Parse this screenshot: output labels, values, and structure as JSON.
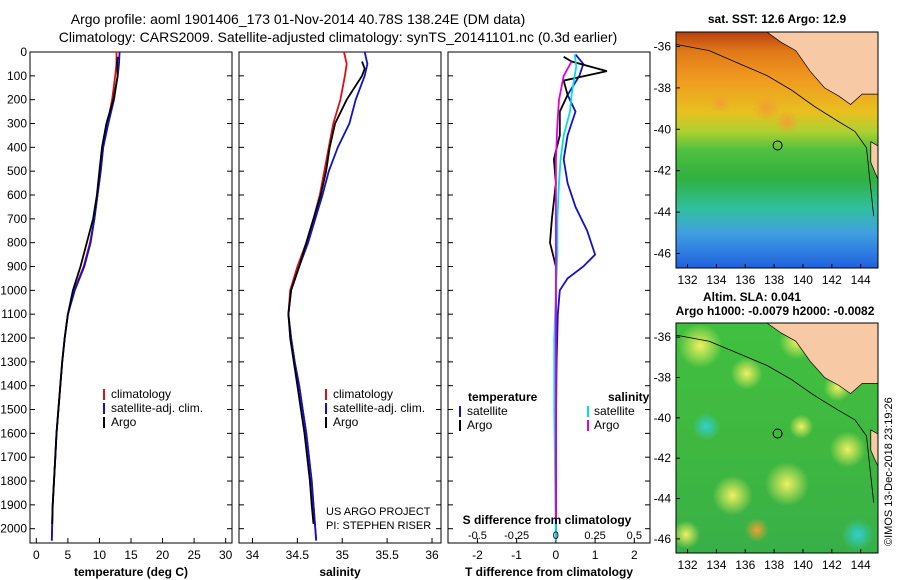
{
  "header": {
    "line1": "Argo profile: aoml 1901406_173 01-Nov-2014 40.78S 138.24E (DM data)",
    "line2": "Climatology: CARS2009. Satellite-adjusted climatology: synTS_20141101.nc (0.3d earlier)"
  },
  "colors": {
    "climatology": "#e01010",
    "satellite": "#1010d0",
    "argo": "#000000",
    "sal_satellite": "#00e0e0",
    "sal_argo": "#e000e0",
    "land": "#f7c9a4"
  },
  "chart_data": [
    {
      "type": "line",
      "panel": "temperature",
      "xlabel": "temperature (deg C)",
      "ylabel": "",
      "xlim": [
        -1,
        31
      ],
      "ylim": [
        2060,
        0
      ],
      "xticks": [
        0,
        5,
        10,
        15,
        20,
        25,
        30
      ],
      "yticks": [
        0,
        100,
        200,
        300,
        400,
        500,
        600,
        700,
        800,
        900,
        1000,
        1100,
        1200,
        1300,
        1400,
        1500,
        1600,
        1700,
        1800,
        1900,
        2000
      ],
      "ytick_labels": [
        "0",
        "100",
        "200",
        "300",
        "400",
        "500",
        "600",
        "700",
        "800",
        "900",
        "1000",
        "1100",
        "1200",
        "1300",
        "1400",
        "1500",
        "1600",
        "1700",
        "1800",
        "1900",
        "2000"
      ],
      "legend": [
        "climatology",
        "satellite-adj. clim.",
        "Argo"
      ],
      "series": [
        {
          "name": "climatology",
          "color": "#e01010",
          "points": [
            [
              12.7,
              0
            ],
            [
              12.7,
              50
            ],
            [
              12.5,
              100
            ],
            [
              12.0,
              200
            ],
            [
              11.3,
              300
            ],
            [
              10.6,
              400
            ],
            [
              10.2,
              500
            ],
            [
              9.7,
              600
            ],
            [
              9.2,
              700
            ],
            [
              8.5,
              800
            ],
            [
              7.5,
              900
            ],
            [
              6.0,
              1000
            ],
            [
              5.0,
              1100
            ],
            [
              4.5,
              1200
            ],
            [
              4.1,
              1300
            ],
            [
              3.8,
              1400
            ],
            [
              3.5,
              1500
            ],
            [
              3.2,
              1600
            ],
            [
              3.0,
              1700
            ],
            [
              2.8,
              1800
            ],
            [
              2.6,
              1900
            ],
            [
              2.5,
              2000
            ],
            [
              2.45,
              2050
            ]
          ]
        },
        {
          "name": "satellite-adj. clim.",
          "color": "#1010d0",
          "points": [
            [
              13.2,
              0
            ],
            [
              13.1,
              50
            ],
            [
              12.9,
              100
            ],
            [
              12.3,
              200
            ],
            [
              11.4,
              300
            ],
            [
              10.6,
              400
            ],
            [
              10.2,
              500
            ],
            [
              9.7,
              600
            ],
            [
              9.2,
              700
            ],
            [
              8.6,
              800
            ],
            [
              7.6,
              900
            ],
            [
              6.1,
              1000
            ],
            [
              5.0,
              1100
            ],
            [
              4.5,
              1200
            ],
            [
              4.1,
              1300
            ],
            [
              3.8,
              1400
            ],
            [
              3.5,
              1500
            ],
            [
              3.2,
              1600
            ],
            [
              3.0,
              1700
            ],
            [
              2.8,
              1800
            ],
            [
              2.6,
              1900
            ],
            [
              2.5,
              2000
            ],
            [
              2.45,
              2050
            ]
          ]
        },
        {
          "name": "Argo",
          "color": "#000000",
          "points": [
            [
              12.9,
              20
            ],
            [
              12.8,
              50
            ],
            [
              12.9,
              100
            ],
            [
              12.2,
              200
            ],
            [
              11.1,
              300
            ],
            [
              10.4,
              400
            ],
            [
              10.0,
              500
            ],
            [
              9.6,
              600
            ],
            [
              9.0,
              700
            ],
            [
              8.0,
              800
            ],
            [
              7.0,
              900
            ],
            [
              5.8,
              1000
            ],
            [
              5.0,
              1100
            ],
            [
              4.5,
              1200
            ],
            [
              4.1,
              1300
            ],
            [
              3.8,
              1400
            ],
            [
              3.5,
              1500
            ],
            [
              3.2,
              1600
            ],
            [
              3.0,
              1700
            ],
            [
              2.8,
              1800
            ],
            [
              2.6,
              1900
            ],
            [
              2.5,
              1980
            ]
          ]
        }
      ]
    },
    {
      "type": "line",
      "panel": "salinity",
      "xlabel": "salinity",
      "ylabel": "",
      "xlim": [
        33.85,
        36.1
      ],
      "ylim": [
        2060,
        0
      ],
      "xticks": [
        34,
        34.5,
        35,
        35.5,
        36
      ],
      "xtick_labels": [
        "34",
        "34.5",
        "35",
        "35.5",
        "36"
      ],
      "legend": [
        "climatology",
        "satellite-adj. clim.",
        "Argo"
      ],
      "annotations": [
        "US ARGO PROJECT",
        "PI: STEPHEN RISER"
      ],
      "series": [
        {
          "name": "climatology",
          "color": "#e01010",
          "points": [
            [
              35.02,
              0
            ],
            [
              35.05,
              50
            ],
            [
              35.03,
              100
            ],
            [
              34.98,
              200
            ],
            [
              34.9,
              300
            ],
            [
              34.85,
              400
            ],
            [
              34.8,
              500
            ],
            [
              34.75,
              600
            ],
            [
              34.68,
              700
            ],
            [
              34.6,
              800
            ],
            [
              34.5,
              900
            ],
            [
              34.42,
              1000
            ],
            [
              34.4,
              1100
            ],
            [
              34.43,
              1200
            ],
            [
              34.47,
              1300
            ],
            [
              34.52,
              1400
            ],
            [
              34.56,
              1500
            ],
            [
              34.6,
              1600
            ],
            [
              34.63,
              1700
            ],
            [
              34.66,
              1800
            ],
            [
              34.68,
              1900
            ],
            [
              34.7,
              2000
            ],
            [
              34.71,
              2050
            ]
          ]
        },
        {
          "name": "satellite-adj. clim.",
          "color": "#1010d0",
          "points": [
            [
              35.25,
              0
            ],
            [
              35.28,
              50
            ],
            [
              35.25,
              100
            ],
            [
              35.15,
              200
            ],
            [
              35.08,
              300
            ],
            [
              34.95,
              400
            ],
            [
              34.85,
              500
            ],
            [
              34.78,
              600
            ],
            [
              34.7,
              700
            ],
            [
              34.62,
              800
            ],
            [
              34.52,
              900
            ],
            [
              34.43,
              1000
            ],
            [
              34.4,
              1100
            ],
            [
              34.43,
              1200
            ],
            [
              34.47,
              1300
            ],
            [
              34.52,
              1400
            ],
            [
              34.56,
              1500
            ],
            [
              34.6,
              1600
            ],
            [
              34.63,
              1700
            ],
            [
              34.66,
              1800
            ],
            [
              34.68,
              1900
            ],
            [
              34.7,
              2000
            ],
            [
              34.71,
              2050
            ]
          ]
        },
        {
          "name": "Argo",
          "color": "#000000",
          "points": [
            [
              35.22,
              40
            ],
            [
              35.25,
              70
            ],
            [
              35.22,
              100
            ],
            [
              35.05,
              200
            ],
            [
              34.92,
              300
            ],
            [
              34.86,
              400
            ],
            [
              34.82,
              500
            ],
            [
              34.76,
              600
            ],
            [
              34.68,
              700
            ],
            [
              34.6,
              800
            ],
            [
              34.52,
              900
            ],
            [
              34.43,
              1000
            ],
            [
              34.4,
              1100
            ],
            [
              34.42,
              1200
            ],
            [
              34.46,
              1300
            ],
            [
              34.5,
              1400
            ],
            [
              34.54,
              1500
            ],
            [
              34.58,
              1600
            ],
            [
              34.61,
              1700
            ],
            [
              34.64,
              1800
            ],
            [
              34.66,
              1900
            ],
            [
              34.68,
              1980
            ]
          ]
        }
      ]
    },
    {
      "type": "line",
      "panel": "difference",
      "xlabel": "T difference from climatology",
      "xlabel2": "S difference from climatology",
      "xlim": [
        -2.75,
        2.4
      ],
      "ylim": [
        2060,
        0
      ],
      "xticks": [
        -2,
        -1,
        0,
        1,
        2
      ],
      "xtick_labels": [
        "-2",
        "-1",
        "0",
        "1",
        "2"
      ],
      "xticks2": [
        -0.5,
        -0.25,
        0,
        0.25,
        0.5
      ],
      "xtick2_labels": [
        "-0.5",
        "-0.25",
        "0",
        "0.25",
        "0.5"
      ],
      "legend_temperature": {
        "title": "temperature",
        "items": [
          "satellite",
          "Argo"
        ]
      },
      "legend_salinity": {
        "title": "salinity",
        "items": [
          "satellite",
          "Argo"
        ]
      },
      "series": [
        {
          "name": "temperature satellite",
          "color": "#1010d0",
          "points": [
            [
              0.5,
              10
            ],
            [
              0.7,
              50
            ],
            [
              0.6,
              100
            ],
            [
              0.3,
              180
            ],
            [
              0.5,
              250
            ],
            [
              0.3,
              350
            ],
            [
              0.2,
              450
            ],
            [
              0.3,
              550
            ],
            [
              0.5,
              650
            ],
            [
              0.8,
              750
            ],
            [
              1.0,
              850
            ],
            [
              0.7,
              900
            ],
            [
              0.3,
              950
            ],
            [
              0.1,
              1000
            ],
            [
              0.05,
              1100
            ],
            [
              0.02,
              1300
            ],
            [
              0,
              1600
            ],
            [
              0,
              2050
            ]
          ]
        },
        {
          "name": "temperature Argo",
          "color": "#000000",
          "points": [
            [
              0.2,
              20
            ],
            [
              0.4,
              40
            ],
            [
              1.3,
              80
            ],
            [
              0.2,
              120
            ],
            [
              0.3,
              180
            ],
            [
              0.1,
              250
            ],
            [
              0.1,
              350
            ],
            [
              -0.05,
              450
            ],
            [
              0,
              550
            ],
            [
              -0.1,
              700
            ],
            [
              -0.15,
              800
            ],
            [
              0,
              900
            ],
            [
              0,
              1000
            ],
            [
              0,
              1980
            ]
          ]
        },
        {
          "name": "salinity satellite",
          "color": "#00e0e0",
          "points": [
            [
              0.12,
              10
            ],
            [
              0.13,
              60
            ],
            [
              0.12,
              100
            ],
            [
              0.1,
              180
            ],
            [
              0.09,
              250
            ],
            [
              0.05,
              350
            ],
            [
              0.03,
              450
            ],
            [
              0.02,
              550
            ],
            [
              0.01,
              700
            ],
            [
              0.01,
              850
            ],
            [
              0,
              1000
            ],
            [
              -0.01,
              1200
            ],
            [
              -0.01,
              1500
            ],
            [
              0,
              2050
            ]
          ]
        },
        {
          "name": "salinity Argo",
          "color": "#e000e0",
          "points": [
            [
              0.1,
              40
            ],
            [
              0.05,
              100
            ],
            [
              0.02,
              200
            ],
            [
              0.01,
              300
            ],
            [
              0,
              450
            ],
            [
              0,
              600
            ],
            [
              0,
              800
            ],
            [
              0,
              1000
            ],
            [
              0,
              1300
            ],
            [
              0,
              1600
            ],
            [
              0,
              1980
            ]
          ]
        }
      ]
    },
    {
      "type": "heatmap",
      "panel": "map-sst",
      "title": "sat. SST: 12.6 Argo: 12.9",
      "xlim": [
        131.2,
        145.2
      ],
      "ylim": [
        -46.7,
        -35.3
      ],
      "xticks": [
        132,
        134,
        136,
        138,
        140,
        142,
        144
      ],
      "yticks": [
        -36,
        -38,
        -40,
        -42,
        -44,
        -46
      ],
      "marker": {
        "lon": 138.24,
        "lat": -40.78
      }
    },
    {
      "type": "heatmap",
      "panel": "map-sla",
      "title": "Altim. SLA: 0.041",
      "subtitle": "Argo h1000: -0.0079 h2000: -0.0082",
      "xlim": [
        131.2,
        145.2
      ],
      "ylim": [
        -46.7,
        -35.3
      ],
      "xticks": [
        132,
        134,
        136,
        138,
        140,
        142,
        144
      ],
      "yticks": [
        -36,
        -38,
        -40,
        -42,
        -44,
        -46
      ],
      "marker": {
        "lon": 138.24,
        "lat": -40.78
      }
    }
  ],
  "footer": {
    "credit": "©IMOS 13-Dec-2018 23:19:26"
  }
}
